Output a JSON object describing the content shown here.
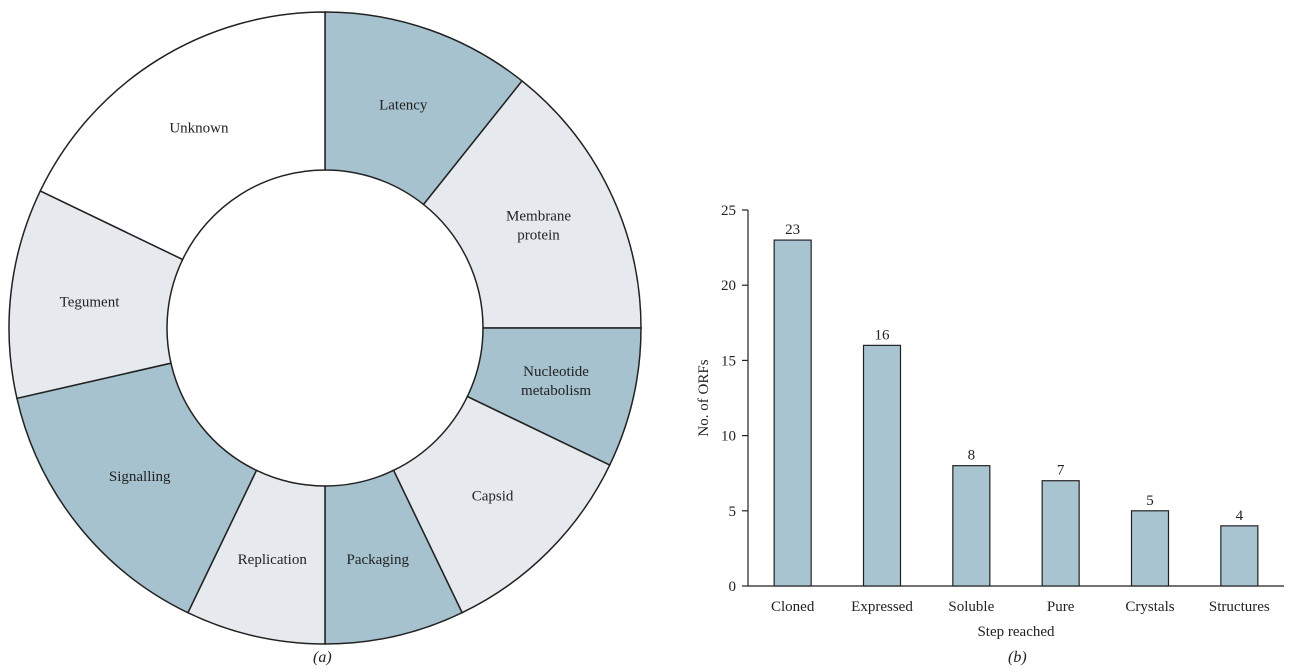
{
  "captions": {
    "a": "(a)",
    "b": "(b)"
  },
  "colors": {
    "dark": "#a6c2ce",
    "light": "#e6eaee",
    "white": "#ffffff",
    "bar": "#a9c4d1",
    "stroke": "#222222"
  },
  "chart_data": [
    {
      "type": "pie",
      "donut": true,
      "slices": [
        {
          "label": "Latency",
          "value": 3,
          "color": "dark"
        },
        {
          "label": "Membrane protein",
          "value": 4,
          "color": "light"
        },
        {
          "label": "Nucleotide metabolism",
          "value": 2,
          "color": "dark"
        },
        {
          "label": "Capsid",
          "value": 3,
          "color": "light"
        },
        {
          "label": "Packaging",
          "value": 2,
          "color": "dark"
        },
        {
          "label": "Replication",
          "value": 2,
          "color": "light"
        },
        {
          "label": "Signalling",
          "value": 4,
          "color": "dark"
        },
        {
          "label": "Tegument",
          "value": 3,
          "color": "light"
        },
        {
          "label": "Unknown",
          "value": 5,
          "color": "white"
        }
      ]
    },
    {
      "type": "bar",
      "categories": [
        "Cloned",
        "Expressed",
        "Soluble",
        "Pure",
        "Crystals",
        "Structures"
      ],
      "values": [
        23,
        16,
        8,
        7,
        5,
        4
      ],
      "data_labels": [
        "23",
        "16",
        "8",
        "7",
        "5",
        "4"
      ],
      "xlabel": "Step reached",
      "ylabel": "No. of ORFs",
      "ylim": [
        0,
        25
      ],
      "yticks": [
        0,
        5,
        10,
        15,
        20,
        25
      ],
      "grid": false
    }
  ]
}
